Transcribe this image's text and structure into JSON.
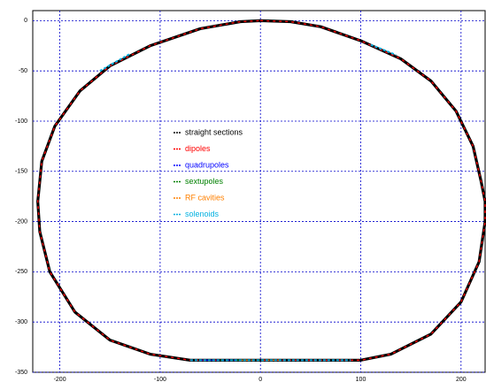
{
  "chart_data": {
    "type": "line",
    "xlim": [
      -227,
      224
    ],
    "ylim": [
      -350,
      10
    ],
    "xticks": [
      -200,
      -100,
      0,
      100,
      200
    ],
    "yticks": [
      0,
      -50,
      -100,
      -150,
      -200,
      -250,
      -300,
      -350
    ],
    "grid": true,
    "legend": "center",
    "series": [
      {
        "name": "straight sections",
        "color": "#000000",
        "x": [
          0,
          30,
          60,
          100,
          140,
          170,
          195,
          212,
          220,
          224,
          224,
          218,
          200,
          170,
          130,
          100,
          0,
          -70,
          -110,
          -150,
          -185,
          -210,
          -220,
          -222,
          -218,
          -205,
          -180,
          -150,
          -110,
          -60,
          -20,
          0
        ],
        "values": [
          0,
          -1,
          -6,
          -20,
          -38,
          -60,
          -90,
          -125,
          -160,
          -180,
          -200,
          -240,
          -280,
          -312,
          -332,
          -338,
          -338,
          -338,
          -332,
          -318,
          -290,
          -250,
          -210,
          -180,
          -140,
          -105,
          -70,
          -45,
          -25,
          -8,
          -1,
          0
        ]
      },
      {
        "name": "dipoles",
        "color": "#ff0000",
        "x": [
          0,
          30,
          60,
          100,
          140,
          170,
          195,
          212,
          220,
          224,
          224,
          218,
          200,
          170,
          130,
          100,
          0,
          -70,
          -110,
          -150,
          -185,
          -210,
          -220,
          -222,
          -218,
          -205,
          -180,
          -150,
          -110,
          -60,
          -20,
          0
        ],
        "values": [
          0,
          -1,
          -6,
          -20,
          -38,
          -60,
          -90,
          -125,
          -160,
          -180,
          -200,
          -240,
          -280,
          -312,
          -332,
          -338,
          -338,
          -338,
          -332,
          -318,
          -290,
          -250,
          -210,
          -180,
          -140,
          -105,
          -70,
          -45,
          -25,
          -8,
          -1,
          0
        ]
      },
      {
        "name": "quadrupoles",
        "color": "#0000ff",
        "x": [
          -60,
          -20
        ],
        "values": [
          -338,
          -338
        ]
      },
      {
        "name": "sextupoles",
        "color": "#008000",
        "x": [
          -40,
          0
        ],
        "values": [
          -338,
          -338
        ]
      },
      {
        "name": "RF cavities",
        "color": "#ff8000",
        "x": [
          -20,
          20
        ],
        "values": [
          -338,
          -338
        ]
      },
      {
        "name": "solenoids",
        "color": "#00b0e0",
        "x": [
          -160,
          -130,
          null,
          110,
          135,
          null,
          -70,
          90
        ],
        "values": [
          -50,
          -33,
          null,
          -24,
          -34,
          null,
          -338,
          -338
        ]
      }
    ]
  }
}
